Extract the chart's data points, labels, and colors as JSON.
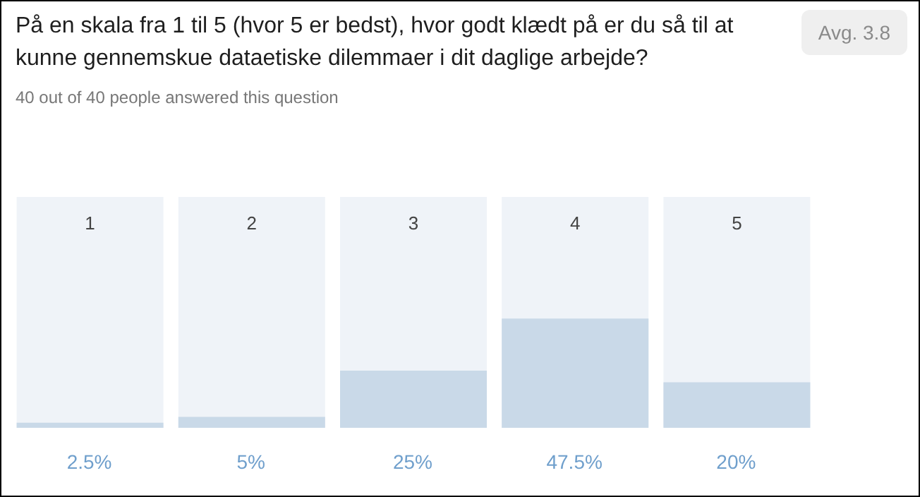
{
  "chart_data": {
    "type": "bar",
    "title": "På en skala fra 1 til 5 (hvor 5 er bedst), hvor godt klædt på er du så til at kunne gennemskue dataetiske dilemmaer i dit daglige arbejde?",
    "subtitle": "40 out of 40 people answered this question",
    "annotations": [
      "Avg. 3.8"
    ],
    "categories": [
      "1",
      "2",
      "3",
      "4",
      "5"
    ],
    "values": [
      2.5,
      5,
      25,
      47.5,
      20
    ],
    "value_labels": [
      "2.5%",
      "5%",
      "25%",
      "47.5%",
      "20%"
    ],
    "color": "#c9d9e8",
    "ylim": [
      0,
      100
    ],
    "tick_labels": false,
    "grid": false
  }
}
